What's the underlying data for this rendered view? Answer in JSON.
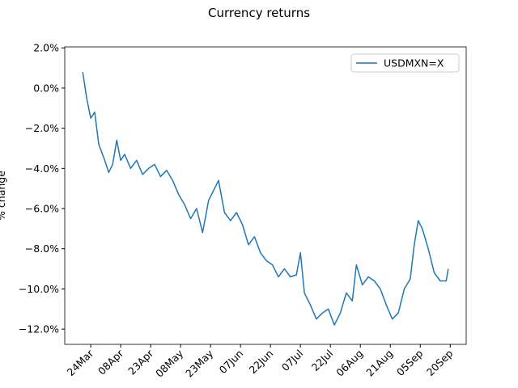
{
  "chart_data": {
    "type": "line",
    "title": "Currency returns",
    "y_label": "% change",
    "x": [
      "20Mar",
      "22Mar",
      "24Mar",
      "26Mar",
      "28Mar",
      "31Mar",
      "02Apr",
      "04Apr",
      "06Apr",
      "08Apr",
      "10Apr",
      "13Apr",
      "16Apr",
      "19Apr",
      "22Apr",
      "25Apr",
      "28Apr",
      "01May",
      "04May",
      "07May",
      "10May",
      "13May",
      "16May",
      "19May",
      "22May",
      "25May",
      "27May",
      "30May",
      "02Jun",
      "05Jun",
      "08Jun",
      "11Jun",
      "14Jun",
      "17Jun",
      "20Jun",
      "23Jun",
      "26Jun",
      "29Jun",
      "02Jul",
      "05Jul",
      "07Jul",
      "09Jul",
      "12Jul",
      "15Jul",
      "18Jul",
      "21Jul",
      "24Jul",
      "27Jul",
      "30Jul",
      "02Aug",
      "04Aug",
      "07Aug",
      "10Aug",
      "13Aug",
      "16Aug",
      "19Aug",
      "22Aug",
      "25Aug",
      "28Aug",
      "31Aug",
      "02Sep",
      "04Sep",
      "06Sep",
      "09Sep",
      "12Sep",
      "15Sep",
      "18Sep",
      "19Sep"
    ],
    "series": [
      {
        "name": "USDMXN=X",
        "color": "#1f77b4",
        "values": [
          0.8,
          -0.5,
          -1.5,
          -1.2,
          -2.8,
          -3.6,
          -4.2,
          -3.8,
          -2.6,
          -3.6,
          -3.3,
          -4.0,
          -3.6,
          -4.3,
          -4.0,
          -3.8,
          -4.4,
          -4.1,
          -4.6,
          -5.3,
          -5.8,
          -6.5,
          -6.0,
          -7.2,
          -5.6,
          -5.0,
          -4.6,
          -6.2,
          -6.6,
          -6.2,
          -6.8,
          -7.8,
          -7.4,
          -8.2,
          -8.6,
          -8.8,
          -9.4,
          -9.0,
          -9.4,
          -9.3,
          -8.2,
          -10.2,
          -10.8,
          -11.5,
          -11.2,
          -11.0,
          -11.8,
          -11.2,
          -10.2,
          -10.6,
          -8.8,
          -9.8,
          -9.4,
          -9.6,
          -10.0,
          -10.8,
          -11.5,
          -11.2,
          -10.0,
          -9.5,
          -7.8,
          -6.6,
          -7.0,
          -8.0,
          -9.2,
          -9.6,
          -9.6,
          -9.0
        ]
      }
    ],
    "xlim": [
      "11Mar",
      "28Sep"
    ],
    "xticks": [
      "24Mar",
      "08Apr",
      "23Apr",
      "08May",
      "23May",
      "07Jun",
      "22Jun",
      "07Jul",
      "22Jul",
      "06Aug",
      "21Aug",
      "05Sep",
      "20Sep"
    ],
    "ylim": [
      -12.76,
      2.05
    ],
    "yticks": [
      {
        "value": -12,
        "label": "−12.0%"
      },
      {
        "value": -10,
        "label": "−10.0%"
      },
      {
        "value": -8,
        "label": "−8.0%"
      },
      {
        "value": -6,
        "label": "−6.0%"
      },
      {
        "value": -4,
        "label": "−4.0%"
      },
      {
        "value": -2,
        "label": "−2.0%"
      },
      {
        "value": 0,
        "label": "0.0%"
      },
      {
        "value": 2,
        "label": "2.0%"
      }
    ],
    "legend": "upper right",
    "grid": false
  }
}
